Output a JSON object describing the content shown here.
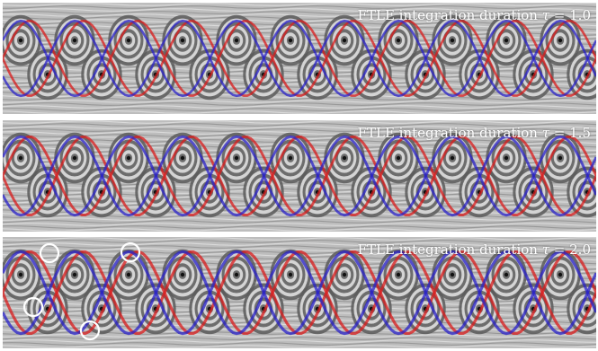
{
  "panels": [
    {
      "caption_prefix": "FTLE integration duration ",
      "tau_symbol": "τ",
      "caption_suffix": " = 1.0",
      "tau": 1.0
    },
    {
      "caption_prefix": "FTLE integration duration ",
      "tau_symbol": "τ",
      "caption_suffix": " = 1.5",
      "tau": 1.5
    },
    {
      "caption_prefix": "FTLE integration duration ",
      "tau_symbol": "τ",
      "caption_suffix": " = 2.0",
      "tau": 2.0
    }
  ],
  "colors": {
    "forward_ftle": "#d91c1c",
    "backward_ftle": "#2a22c8",
    "background": "#bdbdbd",
    "highlight_circle": "#ffffff"
  },
  "icons": [
    "vortex-marker-icon",
    "highlight-circle-icon"
  ]
}
